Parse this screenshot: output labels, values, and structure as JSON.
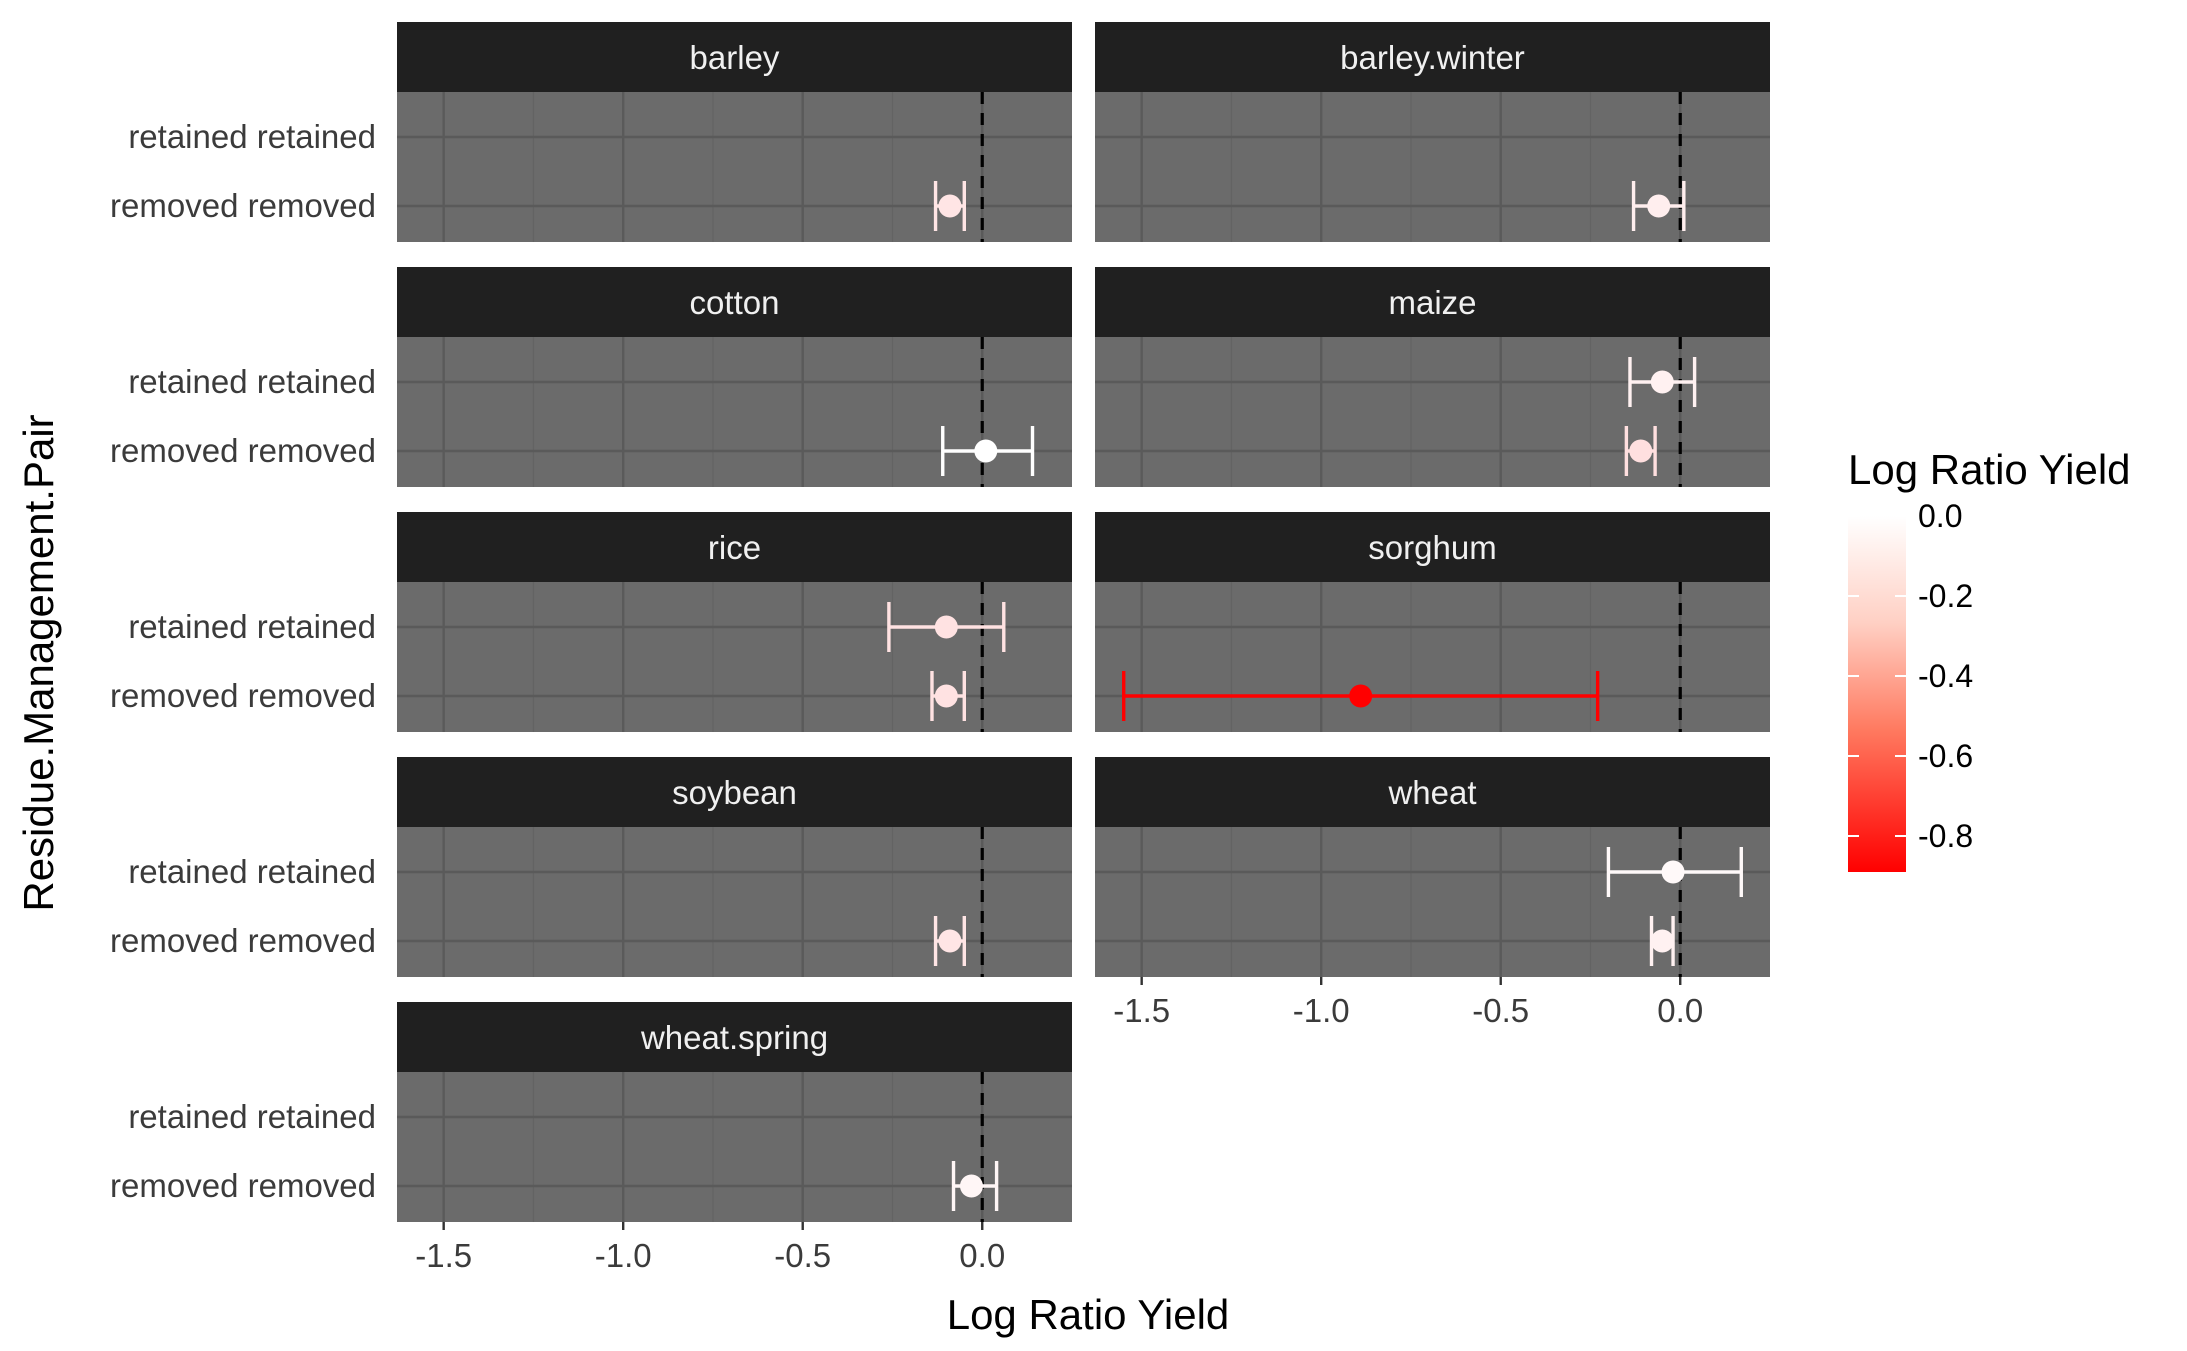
{
  "chart_data": {
    "type": "scatter",
    "x_axis_label": "Log Ratio Yield",
    "y_axis_label": "Residue.Management.Pair",
    "x_ticks": [
      -1.5,
      -1.0,
      -0.5,
      0.0
    ],
    "x_tick_labels": [
      "-1.5",
      "-1.0",
      "-0.5",
      "0.0"
    ],
    "xlim": [
      -1.63,
      0.25
    ],
    "y_categories": [
      "retained retained",
      "removed removed"
    ],
    "reference_line_x": 0.0,
    "legend": {
      "title": "Log Ratio Yield",
      "type": "colorbar",
      "range": [
        -0.89,
        0.0
      ],
      "ticks": [
        0.0,
        -0.2,
        -0.4,
        -0.6,
        -0.8
      ],
      "tick_labels": [
        "0.0",
        "-0.2",
        "-0.4",
        "-0.6",
        "-0.8"
      ],
      "low_color": "#ff0000",
      "high_color": "#ffffff"
    },
    "panels": [
      {
        "name": "barley",
        "points": [
          {
            "category": "removed removed",
            "value": -0.09,
            "lower": -0.13,
            "upper": -0.05
          }
        ]
      },
      {
        "name": "barley.winter",
        "points": [
          {
            "category": "removed removed",
            "value": -0.06,
            "lower": -0.13,
            "upper": 0.01
          }
        ]
      },
      {
        "name": "cotton",
        "points": [
          {
            "category": "removed removed",
            "value": 0.01,
            "lower": -0.11,
            "upper": 0.14
          }
        ]
      },
      {
        "name": "maize",
        "points": [
          {
            "category": "retained retained",
            "value": -0.05,
            "lower": -0.14,
            "upper": 0.04
          },
          {
            "category": "removed removed",
            "value": -0.11,
            "lower": -0.15,
            "upper": -0.07
          }
        ]
      },
      {
        "name": "rice",
        "points": [
          {
            "category": "retained retained",
            "value": -0.1,
            "lower": -0.26,
            "upper": 0.06
          },
          {
            "category": "removed removed",
            "value": -0.1,
            "lower": -0.14,
            "upper": -0.05
          }
        ]
      },
      {
        "name": "sorghum",
        "points": [
          {
            "category": "removed removed",
            "value": -0.89,
            "lower": -1.55,
            "upper": -0.23
          }
        ]
      },
      {
        "name": "soybean",
        "points": [
          {
            "category": "removed removed",
            "value": -0.09,
            "lower": -0.13,
            "upper": -0.05
          }
        ]
      },
      {
        "name": "wheat",
        "points": [
          {
            "category": "retained retained",
            "value": -0.02,
            "lower": -0.2,
            "upper": 0.17
          },
          {
            "category": "removed removed",
            "value": -0.05,
            "lower": -0.08,
            "upper": -0.02
          }
        ]
      },
      {
        "name": "wheat.spring",
        "points": [
          {
            "category": "removed removed",
            "value": -0.03,
            "lower": -0.08,
            "upper": 0.04
          }
        ]
      }
    ]
  }
}
